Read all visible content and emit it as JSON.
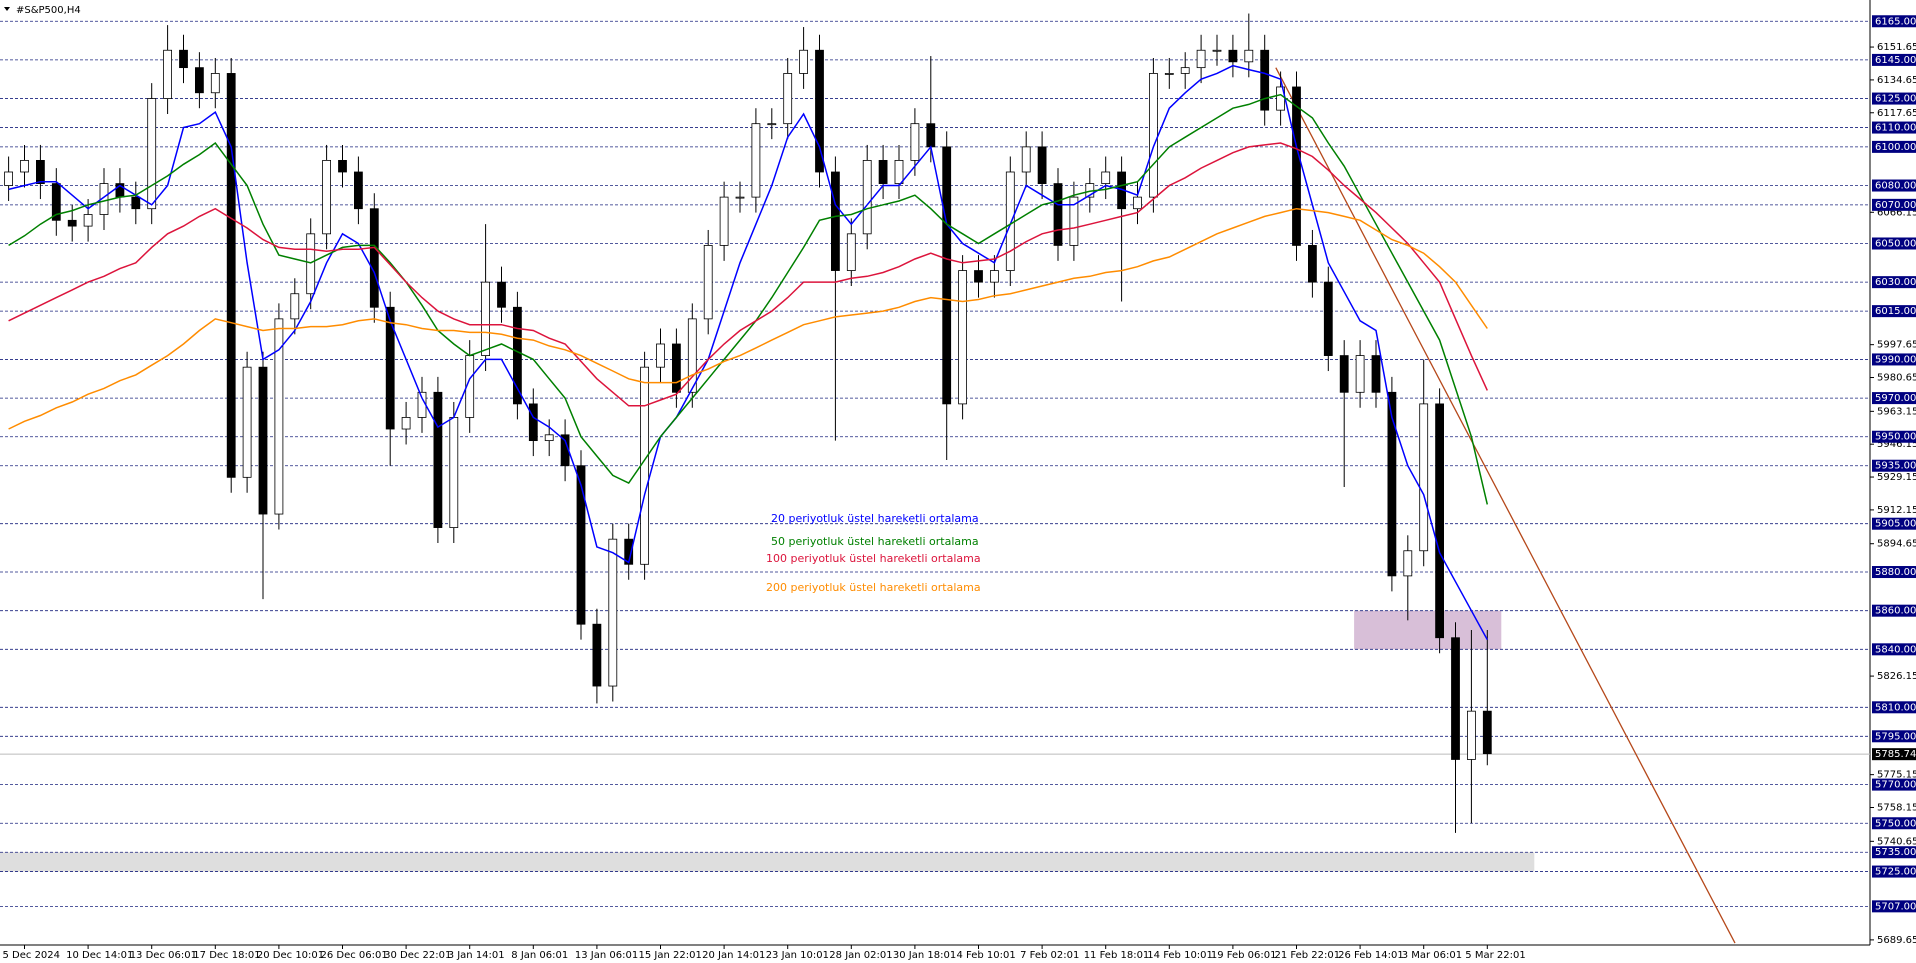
{
  "chart_data": {
    "type": "candlestick",
    "title": "#S&P500,H4",
    "categories": [
      null,
      "5 Dec 2024",
      null,
      null,
      null,
      "10 Dec 14:01",
      null,
      null,
      null,
      "13 Dec 06:01",
      null,
      null,
      null,
      "17 Dec 18:01",
      null,
      null,
      null,
      "20 Dec 10:01",
      null,
      null,
      null,
      "26 Dec 06:01",
      null,
      null,
      null,
      "30 Dec 22:01",
      null,
      null,
      null,
      "3 Jan 14:01",
      null,
      null,
      null,
      "8 Jan 06:01",
      null,
      null,
      null,
      "13 Jan 06:01",
      null,
      null,
      null,
      "15 Jan 22:01",
      null,
      null,
      null,
      "20 Jan 14:01",
      null,
      null,
      null,
      "23 Jan 10:01",
      null,
      null,
      null,
      "28 Jan 02:01",
      null,
      null,
      null,
      "30 Jan 18:01",
      null,
      null,
      null,
      "4 Feb 10:01",
      null,
      null,
      null,
      "7 Feb 02:01",
      null,
      null,
      null,
      "11 Feb 18:01",
      null,
      null,
      null,
      "14 Feb 10:01",
      null,
      null,
      null,
      "19 Feb 06:01",
      null,
      null,
      null,
      "21 Feb 22:01",
      null,
      null,
      null,
      "26 Feb 14:01",
      null,
      null,
      null,
      "3 Mar 06:01",
      null,
      null,
      null,
      "5 Mar 22:01"
    ],
    "open": [
      6080,
      6087,
      6093,
      6081,
      6062,
      6059,
      6065,
      6081,
      6074,
      6068,
      6125,
      6150,
      6141,
      6128,
      6138,
      5929,
      5986,
      5910,
      6011,
      6024,
      6055,
      6093,
      6087,
      6068,
      6017,
      5954,
      5960,
      5973,
      5903,
      5960,
      5992,
      6030,
      6017,
      5967,
      5948,
      5951,
      5935,
      5853,
      5821,
      5897,
      5884,
      5986,
      5998,
      5973,
      6011,
      6049,
      6074,
      6074,
      6112,
      6112,
      6138,
      6150,
      6087,
      6036,
      6055,
      6093,
      6081,
      6093,
      6112,
      6100,
      5967,
      6036,
      6030,
      6036,
      6087,
      6100,
      6081,
      6049,
      6074,
      6081,
      6087,
      6068,
      6074,
      6138,
      6138,
      6141,
      6150,
      6150,
      6144,
      6150,
      6119,
      6131,
      6049,
      6030,
      5992,
      5973,
      5992,
      5973,
      5878,
      5891,
      5967,
      5846,
      5783,
      5808
    ],
    "high": [
      6095,
      6101,
      6101,
      6089,
      6070,
      6073,
      6089,
      6089,
      6082,
      6133,
      6163,
      6158,
      6149,
      6146,
      6146,
      5994,
      5994,
      6019,
      6032,
      6063,
      6101,
      6101,
      6095,
      6076,
      6025,
      5968,
      5981,
      5981,
      5968,
      6000,
      6060,
      6038,
      6025,
      5975,
      5959,
      5959,
      5943,
      5861,
      5905,
      5905,
      5994,
      6006,
      6006,
      6019,
      6057,
      6082,
      6082,
      6120,
      6120,
      6146,
      6162,
      6158,
      6095,
      6063,
      6101,
      6101,
      6101,
      6120,
      6147,
      6108,
      6044,
      6044,
      6044,
      6095,
      6108,
      6108,
      6089,
      6082,
      6089,
      6095,
      6095,
      6082,
      6146,
      6146,
      6149,
      6158,
      6158,
      6158,
      6169,
      6158,
      6139,
      6139,
      6057,
      6038,
      6000,
      6000,
      6000,
      5981,
      5899,
      5990,
      5975,
      5854,
      5850,
      5850
    ],
    "low": [
      6072,
      6079,
      6073,
      6054,
      6051,
      6051,
      6057,
      6066,
      6060,
      6060,
      6117,
      6133,
      6120,
      6120,
      5921,
      5921,
      5866,
      5902,
      6003,
      6016,
      6047,
      6079,
      6060,
      6009,
      5935,
      5946,
      5952,
      5895,
      5895,
      5952,
      5984,
      6009,
      5959,
      5940,
      5940,
      5927,
      5845,
      5812,
      5813,
      5876,
      5876,
      5978,
      5965,
      5965,
      6003,
      6041,
      6066,
      6066,
      6104,
      6104,
      6130,
      6079,
      5948,
      6028,
      6047,
      6073,
      6073,
      6085,
      6092,
      5938,
      5959,
      6022,
      6022,
      6028,
      6079,
      6073,
      6041,
      6041,
      6066,
      6073,
      6020,
      6060,
      6066,
      6130,
      6130,
      6133,
      6142,
      6136,
      6136,
      6111,
      6111,
      6041,
      6022,
      5984,
      5924,
      5965,
      5965,
      5870,
      5855,
      5883,
      5838,
      5745,
      5750,
      5780
    ],
    "close": [
      6087,
      6093,
      6081,
      6062,
      6059,
      6065,
      6081,
      6074,
      6068,
      6125,
      6150,
      6141,
      6128,
      6138,
      5929,
      5986,
      5910,
      6011,
      6024,
      6055,
      6093,
      6087,
      6068,
      6017,
      5954,
      5960,
      5973,
      5903,
      5960,
      5992,
      6030,
      6017,
      5967,
      5948,
      5951,
      5935,
      5853,
      5821,
      5897,
      5884,
      5986,
      5998,
      5973,
      6011,
      6049,
      6074,
      6074,
      6112,
      6112,
      6138,
      6150,
      6087,
      6036,
      6055,
      6093,
      6081,
      6093,
      6112,
      6100,
      5967,
      6036,
      6030,
      6036,
      6087,
      6100,
      6081,
      6049,
      6074,
      6081,
      6087,
      6068,
      6074,
      6138,
      6138,
      6141,
      6150,
      6150,
      6144,
      6150,
      6119,
      6131,
      6049,
      6030,
      5992,
      5973,
      5992,
      5973,
      5878,
      5891,
      5967,
      5846,
      5783,
      5808,
      5786
    ],
    "series": [
      {
        "name": "20 periyotluk üstel hareketli ortalama",
        "color": "#0000ff",
        "values": [
          6078,
          6080,
          6082,
          6082,
          6075,
          6068,
          6074,
          6080,
          6075,
          6070,
          6080,
          6110,
          6112,
          6118,
          6100,
          6040,
          5990,
          5995,
          6005,
          6020,
          6040,
          6055,
          6050,
          6035,
          6010,
          5990,
          5970,
          5955,
          5960,
          5980,
          5990,
          5990,
          5975,
          5960,
          5955,
          5948,
          5925,
          5893,
          5890,
          5885,
          5920,
          5950,
          5960,
          5975,
          5990,
          6015,
          6040,
          6060,
          6080,
          6105,
          6117,
          6100,
          6070,
          6060,
          6070,
          6080,
          6080,
          6090,
          6100,
          6060,
          6050,
          6045,
          6040,
          6060,
          6080,
          6075,
          6070,
          6070,
          6075,
          6080,
          6078,
          6075,
          6100,
          6120,
          6128,
          6135,
          6138,
          6142,
          6140,
          6138,
          6135,
          6100,
          6070,
          6040,
          6025,
          6010,
          6005,
          5960,
          5935,
          5920,
          5890,
          5875,
          5860,
          5845
        ]
      },
      {
        "name": "50 periyotluk üstel hareketli ortalama",
        "color": "#008000",
        "values": [
          6049,
          6054,
          6060,
          6065,
          6067,
          6070,
          6072,
          6074,
          6075,
          6080,
          6085,
          6091,
          6096,
          6102,
          6091,
          6080,
          6060,
          6044,
          6042,
          6040,
          6044,
          6048,
          6049,
          6049,
          6040,
          6030,
          6018,
          6005,
          5998,
          5992,
          5995,
          5998,
          5994,
          5990,
          5980,
          5970,
          5950,
          5940,
          5930,
          5926,
          5938,
          5950,
          5960,
          5970,
          5980,
          5990,
          6000,
          6010,
          6022,
          6035,
          6048,
          6062,
          6064,
          6065,
          6068,
          6070,
          6072,
          6075,
          6068,
          6060,
          6055,
          6050,
          6055,
          6060,
          6065,
          6070,
          6072,
          6075,
          6077,
          6078,
          6080,
          6082,
          6091,
          6100,
          6105,
          6110,
          6115,
          6120,
          6122,
          6125,
          6127,
          6121,
          6115,
          6102,
          6090,
          6075,
          6060,
          6045,
          6030,
          6015,
          6000,
          5975,
          5950,
          5915
        ]
      },
      {
        "name": "100 periyotluk üstel hareketli ortalama",
        "color": "#dc143c",
        "values": [
          6010,
          6014,
          6018,
          6022,
          6026,
          6030,
          6033,
          6037,
          6040,
          6048,
          6055,
          6059,
          6064,
          6068,
          6063,
          6058,
          6052,
          6048,
          6047,
          6047,
          6046,
          6047,
          6047,
          6048,
          6039,
          6030,
          6022,
          6015,
          6011,
          6008,
          6008,
          6008,
          6006,
          6005,
          6001,
          5998,
          5989,
          5980,
          5973,
          5966,
          5966,
          5969,
          5972,
          5981,
          5990,
          5998,
          6005,
          6010,
          6015,
          6022,
          6030,
          6030,
          6030,
          6032,
          6033,
          6035,
          6038,
          6042,
          6045,
          6042,
          6040,
          6041,
          6042,
          6046,
          6051,
          6055,
          6057,
          6058,
          6060,
          6062,
          6064,
          6066,
          6073,
          6080,
          6084,
          6089,
          6093,
          6097,
          6100,
          6101,
          6102,
          6099,
          6095,
          6088,
          6080,
          6073,
          6066,
          6058,
          6050,
          6040,
          6030,
          6011,
          5992,
          5974
        ]
      },
      {
        "name": "200 periyotluk üstel hareketli ortalama",
        "color": "#ff8c00",
        "values": [
          5954,
          5958,
          5961,
          5965,
          5968,
          5972,
          5975,
          5979,
          5982,
          5987,
          5992,
          5998,
          6005,
          6011,
          6009,
          6007,
          6005,
          6006,
          6006,
          6007,
          6007,
          6008,
          6010,
          6011,
          6009,
          6008,
          6006,
          6005,
          6005,
          6004,
          6004,
          6003,
          6001,
          6000,
          5997,
          5995,
          5992,
          5988,
          5984,
          5980,
          5978,
          5978,
          5978,
          5982,
          5985,
          5989,
          5992,
          5996,
          6000,
          6004,
          6008,
          6010,
          6012,
          6013,
          6014,
          6015,
          6017,
          6020,
          6022,
          6021,
          6020,
          6021,
          6023,
          6024,
          6026,
          6028,
          6030,
          6032,
          6033,
          6035,
          6036,
          6038,
          6041,
          6043,
          6047,
          6051,
          6055,
          6058,
          6061,
          6064,
          6066,
          6068,
          6067,
          6066,
          6064,
          6062,
          6057,
          6052,
          6049,
          6045,
          6038,
          6030,
          6018,
          6006
        ]
      }
    ],
    "ylim": [
      5687,
      6176
    ],
    "yticks": [
      6151.65,
      6134.65,
      6117.65,
      6066.15,
      5997.65,
      5980.65,
      5963.15,
      5946.15,
      5929.15,
      5912.15,
      5894.65,
      5826.15,
      5775.15,
      5758.15,
      5740.65,
      5689.65
    ],
    "levels": [
      {
        "value": 6165,
        "label": "6165.00"
      },
      {
        "value": 6145,
        "label": "6145.00"
      },
      {
        "value": 6125,
        "label": "6125.00"
      },
      {
        "value": 6110,
        "label": "6110.00"
      },
      {
        "value": 6100,
        "label": "6100.00"
      },
      {
        "value": 6080,
        "label": "6080.00"
      },
      {
        "value": 6070,
        "label": "6070.00"
      },
      {
        "value": 6050,
        "label": "6050.00"
      },
      {
        "value": 6030,
        "label": "6030.00"
      },
      {
        "value": 6015,
        "label": "6015.00"
      },
      {
        "value": 5990,
        "label": "5990.00"
      },
      {
        "value": 5970,
        "label": "5970.00"
      },
      {
        "value": 5950,
        "label": "5950.00"
      },
      {
        "value": 5935,
        "label": "5935.00"
      },
      {
        "value": 5905,
        "label": "5905.00"
      },
      {
        "value": 5880,
        "label": "5880.00"
      },
      {
        "value": 5860,
        "label": "5860.00"
      },
      {
        "value": 5840,
        "label": "5840.00"
      },
      {
        "value": 5810,
        "label": "5810.00"
      },
      {
        "value": 5795,
        "label": "5795.00"
      },
      {
        "value": 5770,
        "label": "5770.00"
      },
      {
        "value": 5750,
        "label": "5750.00"
      },
      {
        "value": 5735,
        "label": "5735.00"
      },
      {
        "value": 5725,
        "label": "5725.00"
      },
      {
        "value": 5707,
        "label": "5707.00"
      }
    ],
    "last_price": 5785.74,
    "zones": [
      {
        "from": 5840,
        "to": 5860,
        "color": "#d8bfd8"
      },
      {
        "from": 5725,
        "to": 5735,
        "color": "#dedede"
      }
    ],
    "trendline": {
      "from": 6141,
      "to": 5688,
      "color": "#b5481a"
    },
    "grid": false
  }
}
